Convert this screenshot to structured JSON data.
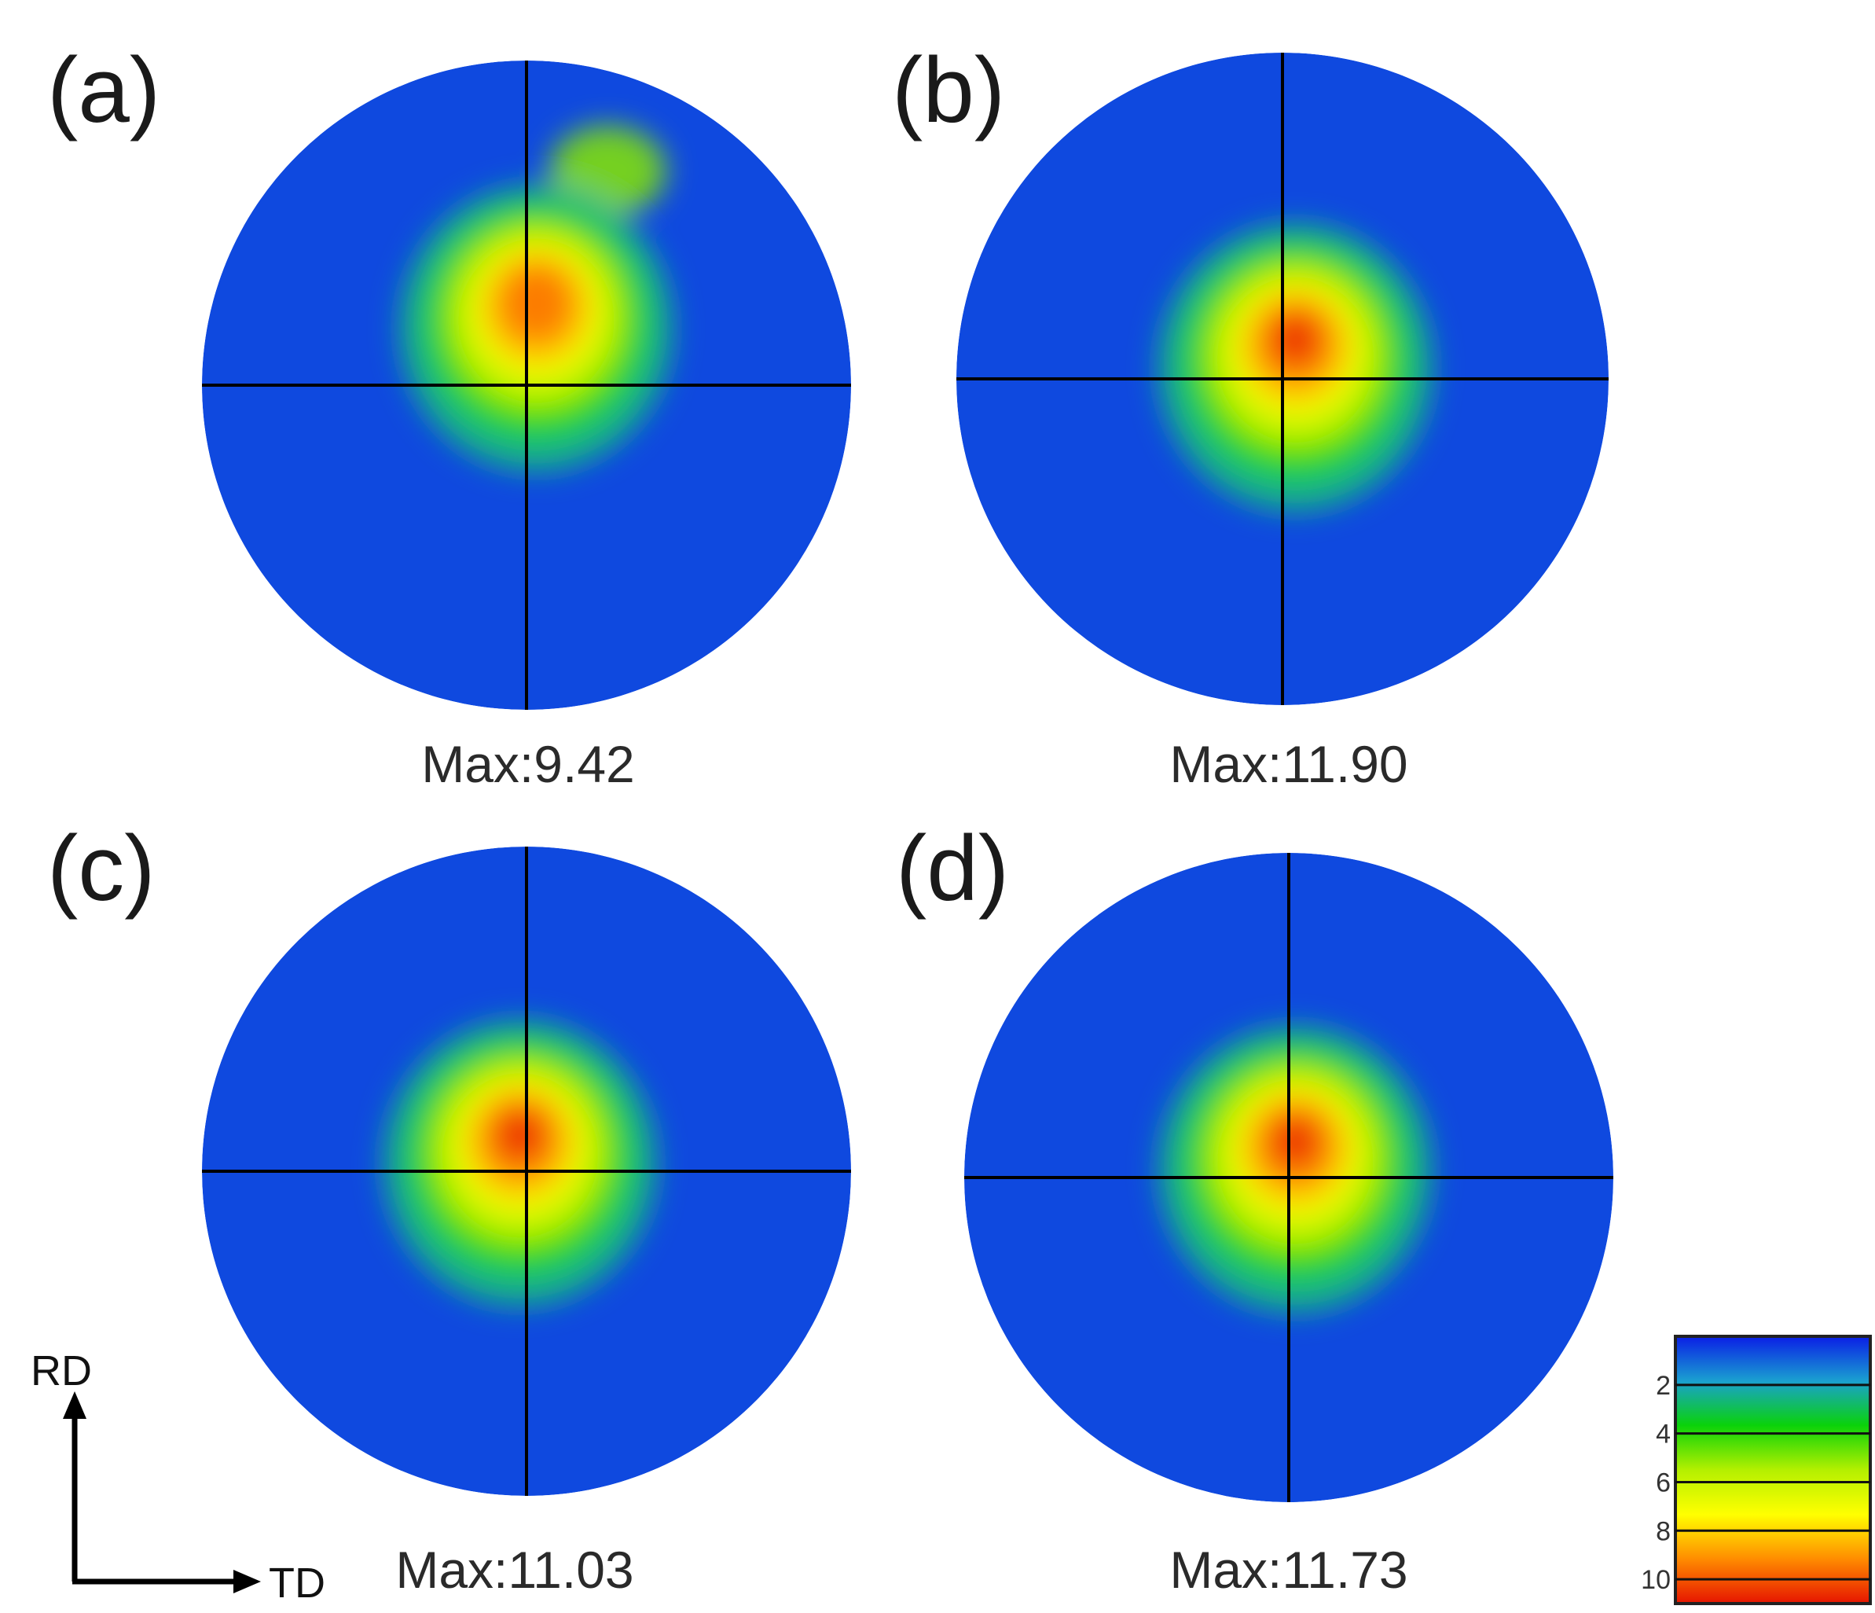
{
  "chart_data": {
    "type": "heatmap",
    "description_type": "pole figure intensity maps",
    "panels": [
      {
        "label": "(a)",
        "max_text": "Max:9.42",
        "max": 9.42,
        "peak": [
          0.03,
          0.28
        ],
        "secondary_lobes": [
          {
            "center": [
              0.25,
              0.66
            ],
            "spread": [
              0.18,
              0.14
            ],
            "level": 5.0
          }
        ]
      },
      {
        "label": "(b)",
        "max_text": "Max:11.90",
        "max": 11.9,
        "peak": [
          0.04,
          0.14
        ],
        "secondary_lobes": [
          {
            "center": [
              -0.02,
              -0.12
            ],
            "spread": [
              0.2,
              0.22
            ],
            "level": 4.0
          }
        ]
      },
      {
        "label": "(c)",
        "max_text": "Max:11.03",
        "max": 11.03,
        "peak": [
          -0.02,
          0.13
        ],
        "secondary_lobes": [
          {
            "center": [
              0.12,
              -0.12
            ],
            "spread": [
              0.18,
              0.2
            ],
            "level": 4.5
          }
        ]
      },
      {
        "label": "(d)",
        "max_text": "Max:11.73",
        "max": 11.73,
        "peak": [
          0.02,
          0.13
        ],
        "secondary_lobes": [
          {
            "center": [
              -0.02,
              -0.18
            ],
            "spread": [
              0.15,
              0.22
            ],
            "level": 4.0
          }
        ]
      }
    ],
    "colorbar": {
      "ticks": [
        "2",
        "4",
        "6",
        "8",
        "10"
      ],
      "range": [
        0,
        11
      ],
      "colors": [
        "#0a1ee6",
        "#1aa0d0",
        "#0ad20a",
        "#b4f000",
        "#ffff00",
        "#ff8c00",
        "#e61400"
      ]
    },
    "axes": {
      "vertical": "RD",
      "horizontal": "TD"
    },
    "background_level": 0.6
  }
}
